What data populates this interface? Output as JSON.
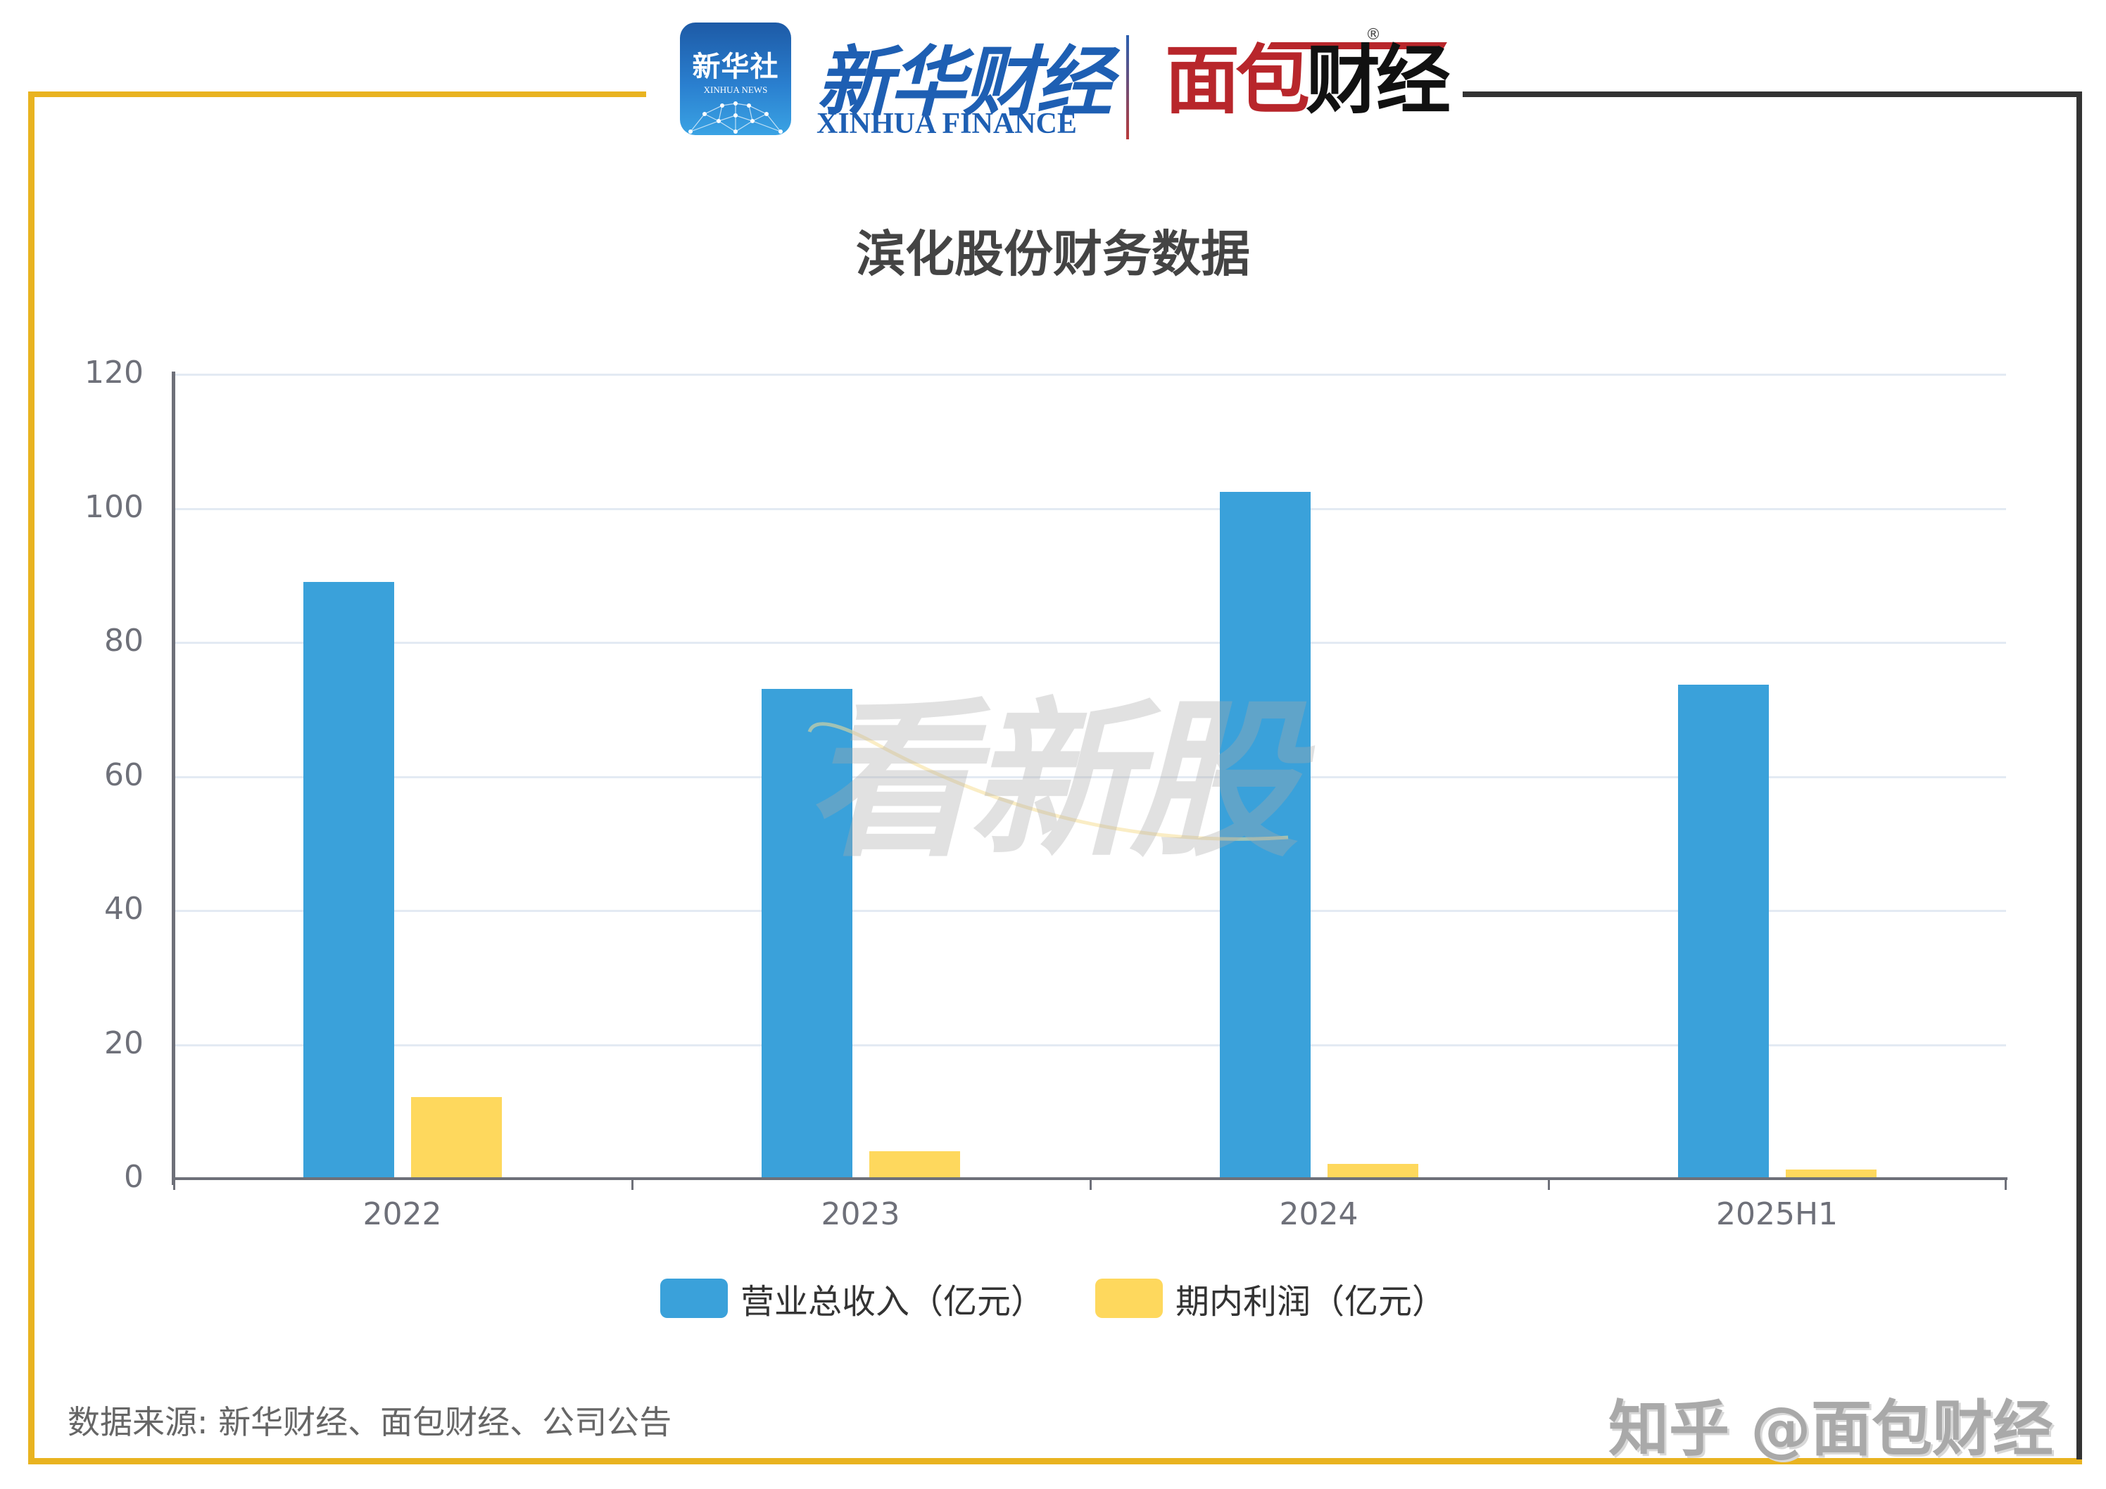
{
  "header": {
    "logo_xinhua_news_cn": "新华社",
    "logo_xinhua_news_en": "XINHUA NEWS",
    "logo_xinhua_finance_cn": "新华财经",
    "logo_xinhua_finance_en": "XINHUA FINANCE",
    "logo_mianbao": "面包财经",
    "logo_mianbao_red": "面包",
    "logo_mianbao_black": "财经",
    "registered_mark": "®"
  },
  "colors": {
    "accent_yellow": "#e9b320",
    "frame_dark": "#333333",
    "series_blue": "#3aa1da",
    "series_yellow": "#fed85d"
  },
  "watermark": {
    "text": "看新股"
  },
  "legend": {
    "items": [
      {
        "label": "营业总收入（亿元）",
        "color": "#3aa1da"
      },
      {
        "label": "期内利润（亿元）",
        "color": "#fed85d"
      }
    ]
  },
  "footer": {
    "source": "数据来源: 新华财经、面包财经、公司公告",
    "platform_mark": "知乎 @面包财经"
  },
  "chart_data": {
    "type": "bar",
    "title": "滨化股份财务数据",
    "categories": [
      "2022",
      "2023",
      "2024",
      "2025H1"
    ],
    "series": [
      {
        "name": "营业总收入（亿元）",
        "color": "#3aa1da",
        "values": [
          89.0,
          73.1,
          102.5,
          73.7
        ]
      },
      {
        "name": "期内利润（亿元）",
        "color": "#fed85d",
        "values": [
          12.2,
          4.1,
          2.2,
          1.4
        ]
      }
    ],
    "xlabel": "",
    "ylabel": "",
    "ylim": [
      0,
      120
    ],
    "yticks": [
      0,
      20,
      40,
      60,
      80,
      100,
      120
    ],
    "grid": true,
    "legend_position": "bottom"
  }
}
